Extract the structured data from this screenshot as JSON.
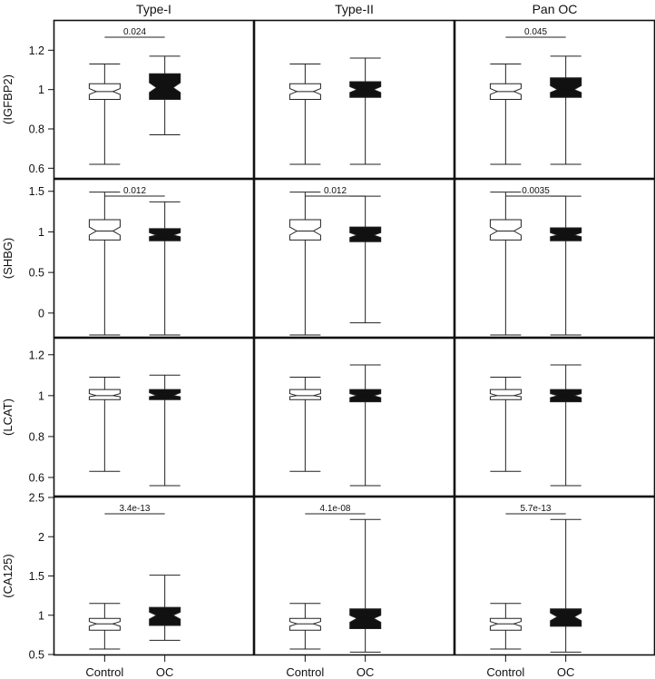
{
  "chart_data": {
    "type": "boxplot",
    "columns": [
      "Type-I",
      "Type-II",
      "Pan OC"
    ],
    "groups": [
      "Control",
      "OC"
    ],
    "group_fill": {
      "Control": "#ffffff",
      "OC": "#111111"
    },
    "rows": [
      {
        "label": "(IGFBP2)",
        "ylim": [
          0.56,
          1.34
        ],
        "ticks": [
          0.6,
          0.8,
          1.0,
          1.2
        ],
        "tick_labels": [
          "0.6",
          "0.8",
          "1",
          "1.2"
        ],
        "panels": [
          {
            "pvalue": "0.024",
            "control": {
              "min": 0.62,
              "q1": 0.95,
              "med": 0.99,
              "q3": 1.03,
              "max": 1.13,
              "nlo": 0.975,
              "nhi": 1.005
            },
            "oc": {
              "min": 0.77,
              "q1": 0.95,
              "med": 1.01,
              "q3": 1.08,
              "max": 1.17,
              "nlo": 0.985,
              "nhi": 1.035
            }
          },
          {
            "pvalue": "",
            "control": {
              "min": 0.62,
              "q1": 0.95,
              "med": 0.99,
              "q3": 1.03,
              "max": 1.13,
              "nlo": 0.975,
              "nhi": 1.005
            },
            "oc": {
              "min": 0.62,
              "q1": 0.96,
              "med": 1.0,
              "q3": 1.04,
              "max": 1.16,
              "nlo": 0.985,
              "nhi": 1.015
            }
          },
          {
            "pvalue": "0.045",
            "control": {
              "min": 0.62,
              "q1": 0.95,
              "med": 0.99,
              "q3": 1.03,
              "max": 1.13,
              "nlo": 0.975,
              "nhi": 1.005
            },
            "oc": {
              "min": 0.62,
              "q1": 0.96,
              "med": 1.0,
              "q3": 1.06,
              "max": 1.17,
              "nlo": 0.985,
              "nhi": 1.02
            }
          }
        ]
      },
      {
        "label": "(SHBG)",
        "ylim": [
          -0.27,
          1.62
        ],
        "ticks": [
          0,
          0.5,
          1.0,
          1.5
        ],
        "tick_labels": [
          "0",
          "0.5",
          "1",
          "1.5"
        ],
        "panels": [
          {
            "pvalue": "0.012",
            "control": {
              "min": -0.27,
              "q1": 0.9,
              "med": 1.01,
              "q3": 1.15,
              "max": 1.49,
              "nlo": 0.96,
              "nhi": 1.06
            },
            "oc": {
              "min": -0.27,
              "q1": 0.89,
              "med": 0.96,
              "q3": 1.04,
              "max": 1.37,
              "nlo": 0.94,
              "nhi": 0.99
            }
          },
          {
            "pvalue": "0.012",
            "control": {
              "min": -0.27,
              "q1": 0.9,
              "med": 1.01,
              "q3": 1.15,
              "max": 1.49,
              "nlo": 0.96,
              "nhi": 1.06
            },
            "oc": {
              "min": -0.12,
              "q1": 0.88,
              "med": 0.96,
              "q3": 1.06,
              "max": 1.44,
              "nlo": 0.93,
              "nhi": 0.99
            }
          },
          {
            "pvalue": "0.0035",
            "control": {
              "min": -0.27,
              "q1": 0.9,
              "med": 1.01,
              "q3": 1.15,
              "max": 1.49,
              "nlo": 0.96,
              "nhi": 1.06
            },
            "oc": {
              "min": -0.27,
              "q1": 0.89,
              "med": 0.96,
              "q3": 1.05,
              "max": 1.44,
              "nlo": 0.94,
              "nhi": 0.99
            }
          }
        ]
      },
      {
        "label": "(LCAT)",
        "ylim": [
          0.52,
          1.27
        ],
        "ticks": [
          0.6,
          0.8,
          1.0,
          1.2
        ],
        "tick_labels": [
          "0.6",
          "0.8",
          "1",
          "1.2"
        ],
        "panels": [
          {
            "pvalue": "",
            "control": {
              "min": 0.63,
              "q1": 0.98,
              "med": 1.0,
              "q3": 1.03,
              "max": 1.09,
              "nlo": 0.995,
              "nhi": 1.01
            },
            "oc": {
              "min": 0.56,
              "q1": 0.98,
              "med": 1.0,
              "q3": 1.03,
              "max": 1.1,
              "nlo": 0.995,
              "nhi": 1.015
            }
          },
          {
            "pvalue": "",
            "control": {
              "min": 0.63,
              "q1": 0.98,
              "med": 1.0,
              "q3": 1.03,
              "max": 1.09,
              "nlo": 0.995,
              "nhi": 1.01
            },
            "oc": {
              "min": 0.56,
              "q1": 0.97,
              "med": 1.0,
              "q3": 1.03,
              "max": 1.15,
              "nlo": 0.99,
              "nhi": 1.01
            }
          },
          {
            "pvalue": "",
            "control": {
              "min": 0.63,
              "q1": 0.98,
              "med": 1.0,
              "q3": 1.03,
              "max": 1.09,
              "nlo": 0.995,
              "nhi": 1.01
            },
            "oc": {
              "min": 0.56,
              "q1": 0.97,
              "med": 1.0,
              "q3": 1.03,
              "max": 1.15,
              "nlo": 0.99,
              "nhi": 1.01
            }
          }
        ]
      },
      {
        "label": "(CA125)",
        "ylim": [
          0.5,
          2.5
        ],
        "ticks": [
          0.5,
          1.0,
          1.5,
          2.0,
          2.5
        ],
        "tick_labels": [
          "0.5",
          "1",
          "1.5",
          "2",
          "2.5"
        ],
        "panels": [
          {
            "pvalue": "3.4e-13",
            "control": {
              "min": 0.57,
              "q1": 0.81,
              "med": 0.89,
              "q3": 0.96,
              "max": 1.15,
              "nlo": 0.86,
              "nhi": 0.92
            },
            "oc": {
              "min": 0.68,
              "q1": 0.87,
              "med": 1.0,
              "q3": 1.1,
              "max": 1.51,
              "nlo": 0.95,
              "nhi": 1.04
            }
          },
          {
            "pvalue": "4.1e-08",
            "control": {
              "min": 0.57,
              "q1": 0.81,
              "med": 0.89,
              "q3": 0.96,
              "max": 1.15,
              "nlo": 0.86,
              "nhi": 0.92
            },
            "oc": {
              "min": 0.53,
              "q1": 0.83,
              "med": 0.96,
              "q3": 1.08,
              "max": 2.22,
              "nlo": 0.91,
              "nhi": 1.0
            }
          },
          {
            "pvalue": "5.7e-13",
            "control": {
              "min": 0.57,
              "q1": 0.81,
              "med": 0.89,
              "q3": 0.96,
              "max": 1.15,
              "nlo": 0.86,
              "nhi": 0.92
            },
            "oc": {
              "min": 0.53,
              "q1": 0.86,
              "med": 0.98,
              "q3": 1.08,
              "max": 2.22,
              "nlo": 0.93,
              "nhi": 1.03
            }
          }
        ]
      }
    ]
  }
}
